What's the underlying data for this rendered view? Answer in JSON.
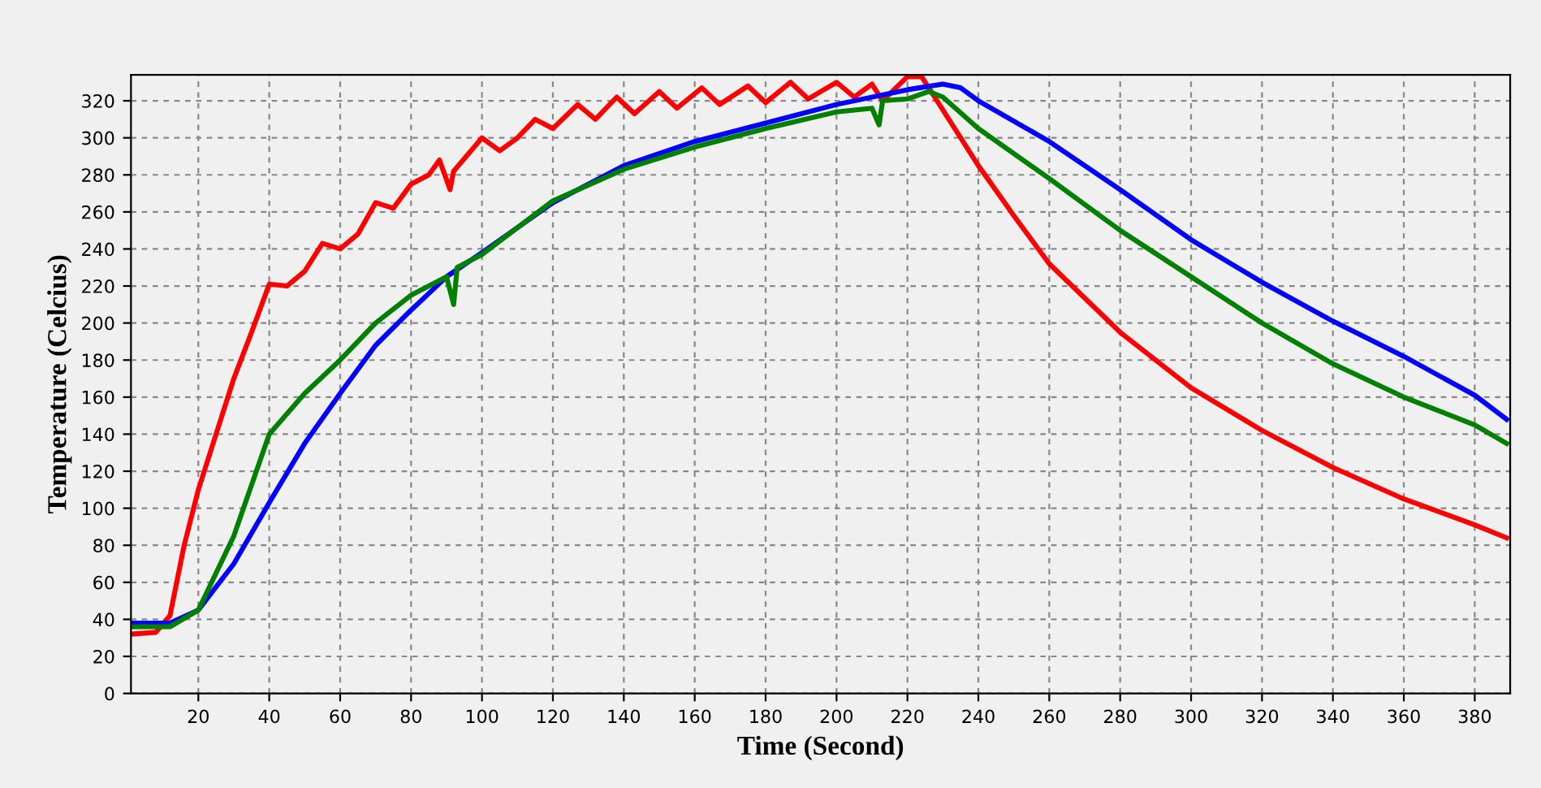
{
  "chart_data": {
    "type": "line",
    "xlabel": "Time (Second)",
    "ylabel": "Temperature (Celcius)",
    "xlim": [
      1,
      390
    ],
    "ylim": [
      0,
      334
    ],
    "xticks": [
      20,
      40,
      60,
      80,
      100,
      120,
      140,
      160,
      180,
      200,
      220,
      240,
      260,
      280,
      300,
      320,
      340,
      360,
      380
    ],
    "yticks": [
      0,
      20,
      40,
      60,
      80,
      100,
      120,
      140,
      160,
      180,
      200,
      220,
      240,
      260,
      280,
      300,
      320
    ],
    "grid": true,
    "marker": "none",
    "line_style": "solid",
    "series": [
      {
        "color": "#ff0000",
        "x": [
          1,
          8,
          12,
          16,
          20,
          25,
          30,
          35,
          40,
          45,
          50,
          55,
          60,
          65,
          70,
          75,
          80,
          85,
          88,
          91,
          92,
          100,
          105,
          110,
          115,
          120,
          127,
          132,
          138,
          143,
          150,
          155,
          162,
          167,
          175,
          180,
          187,
          192,
          200,
          205,
          210,
          213,
          220,
          224,
          230,
          240,
          250,
          260,
          280,
          300,
          320,
          340,
          360,
          380,
          389
        ],
        "values": [
          32,
          33,
          42,
          80,
          110,
          140,
          170,
          195,
          221,
          220,
          228,
          243,
          240,
          248,
          265,
          262,
          275,
          280,
          288,
          272,
          282,
          300,
          293,
          300,
          310,
          305,
          318,
          310,
          322,
          313,
          325,
          316,
          327,
          318,
          328,
          319,
          330,
          321,
          330,
          322,
          329,
          320,
          333,
          333,
          315,
          285,
          258,
          232,
          195,
          165,
          142,
          122,
          105,
          91,
          84
        ]
      },
      {
        "color": "#0000ff",
        "x": [
          1,
          12,
          20,
          30,
          40,
          50,
          60,
          70,
          80,
          90,
          100,
          120,
          140,
          160,
          180,
          200,
          220,
          230,
          235,
          240,
          260,
          280,
          300,
          320,
          340,
          360,
          380,
          389
        ],
        "values": [
          38,
          38,
          45,
          70,
          103,
          135,
          162,
          188,
          207,
          225,
          238,
          265,
          285,
          298,
          308,
          318,
          326,
          329,
          327,
          320,
          298,
          272,
          245,
          222,
          201,
          182,
          161,
          148
        ]
      },
      {
        "color": "#008000",
        "x": [
          1,
          12,
          20,
          30,
          40,
          50,
          60,
          70,
          80,
          90,
          92,
          93,
          100,
          120,
          140,
          160,
          180,
          200,
          210,
          212,
          213,
          220,
          226,
          230,
          240,
          260,
          280,
          300,
          320,
          340,
          360,
          380,
          389
        ],
        "values": [
          36,
          36,
          45,
          85,
          140,
          162,
          180,
          200,
          215,
          225,
          210,
          230,
          237,
          266,
          283,
          295,
          305,
          314,
          316,
          307,
          320,
          321,
          325,
          322,
          305,
          278,
          250,
          225,
          200,
          178,
          160,
          145,
          135
        ]
      }
    ]
  }
}
